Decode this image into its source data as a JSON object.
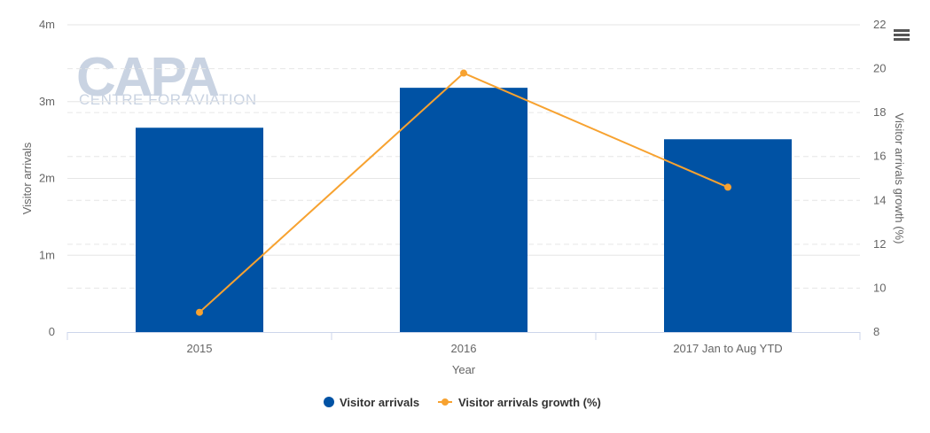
{
  "watermark": {
    "main": "CAPA",
    "sub": "CENTRE FOR AVIATION"
  },
  "chart_data": {
    "type": "bar",
    "categories": [
      "2015",
      "2016",
      "2017 Jan to Aug YTD"
    ],
    "series": [
      {
        "name": "Visitor arrivals",
        "type": "bar",
        "axis": "left",
        "color": "#0052a4",
        "values": [
          2660000,
          3180000,
          2510000
        ]
      },
      {
        "name": "Visitor arrivals growth (%)",
        "type": "line",
        "axis": "right",
        "color": "#f7a230",
        "values": [
          8.9,
          19.8,
          14.6
        ]
      }
    ],
    "xlabel": "Year",
    "ylabel": "Visitor arrivals",
    "ylabel_right": "Visitor arrivals growth (%)",
    "ylim": [
      0,
      4000000
    ],
    "ylim_right": [
      8,
      22
    ],
    "yticks": [
      {
        "value": 0,
        "label": "0"
      },
      {
        "value": 1000000,
        "label": "1m"
      },
      {
        "value": 2000000,
        "label": "2m"
      },
      {
        "value": 3000000,
        "label": "3m"
      },
      {
        "value": 4000000,
        "label": "4m"
      }
    ],
    "yticks_right": [
      8,
      10,
      12,
      14,
      16,
      18,
      20,
      22
    ],
    "grid": true,
    "legend": "bottom-center"
  }
}
